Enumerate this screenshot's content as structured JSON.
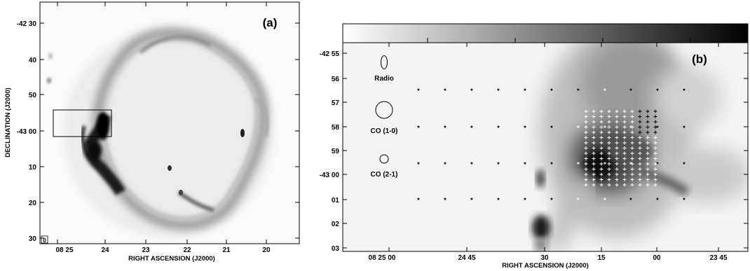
{
  "figure": {
    "panel_a": {
      "label": "(a)",
      "ylabel": "DECLINATION (J2000)",
      "xlabel": "RIGHT ASCENSION (J2000)",
      "y_ticks": [
        "-42 30",
        "40",
        "50",
        "-43 00",
        "10",
        "20",
        "30"
      ],
      "x_ticks": [
        "08 25",
        "24",
        "23",
        "22",
        "21",
        "20"
      ],
      "corner_mark": "0"
    },
    "panel_b": {
      "label": "(b)",
      "xlabel": "RIGHT ASCENSION (J2000)",
      "y_ticks": [
        "-42 55",
        "56",
        "57",
        "58",
        "59",
        "-43 00",
        "01",
        "02",
        "03"
      ],
      "x_ticks": [
        "08 25 00",
        "24 45",
        "30",
        "15",
        "00",
        "23 45"
      ],
      "beams": [
        {
          "name": "Radio"
        },
        {
          "name": "CO (1-0)"
        },
        {
          "name": "CO (2-1)"
        }
      ],
      "colorbar": {
        "from": "#ffffff",
        "to": "#000000"
      }
    }
  }
}
